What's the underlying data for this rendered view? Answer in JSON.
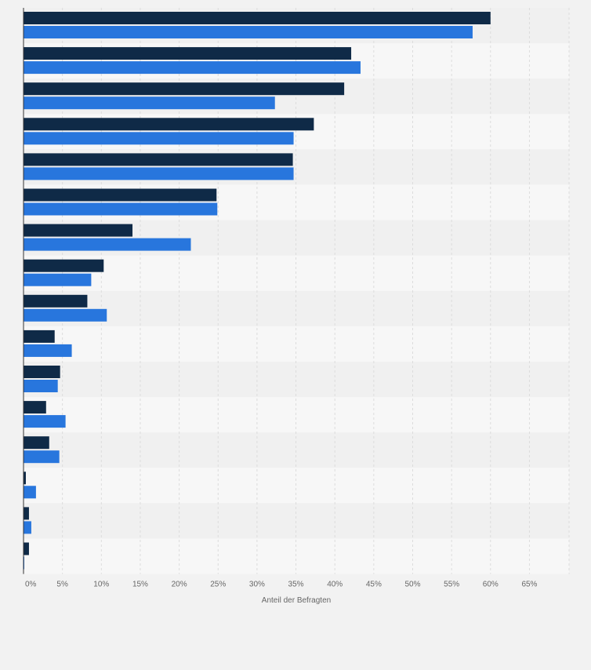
{
  "colors": {
    "series_dark": "#0f2a47",
    "series_blue": "#2876dd",
    "band_light": "#f7f7f7",
    "band_dark": "#f0f0f0",
    "grid": "#dcdcdc",
    "axis": "#333333",
    "tick_text": "#666666"
  },
  "chart_data": {
    "type": "bar",
    "orientation": "horizontal",
    "xlabel": "Anteil der Befragten",
    "xlim": [
      0,
      70
    ],
    "xticks": [
      "0%",
      "5%",
      "10%",
      "15%",
      "20%",
      "25%",
      "30%",
      "35%",
      "40%",
      "45%",
      "50%",
      "55%",
      "60%",
      "65%"
    ],
    "grid": true,
    "categories": [
      "",
      "",
      "",
      "",
      "",
      "",
      "",
      "",
      "",
      "",
      "",
      "",
      "",
      "",
      "",
      ""
    ],
    "series": [
      {
        "color": "#0f2a47",
        "values": [
          60,
          42.1,
          41.2,
          37.3,
          34.6,
          24.8,
          14,
          10.3,
          8.2,
          4,
          4.7,
          2.9,
          3.3,
          0.3,
          0.7,
          0.7
        ]
      },
      {
        "color": "#2876dd",
        "values": [
          57.7,
          43.3,
          32.3,
          34.7,
          34.7,
          24.9,
          21.5,
          8.7,
          10.7,
          6.2,
          4.4,
          5.4,
          4.6,
          1.6,
          1,
          0.1
        ]
      }
    ]
  }
}
